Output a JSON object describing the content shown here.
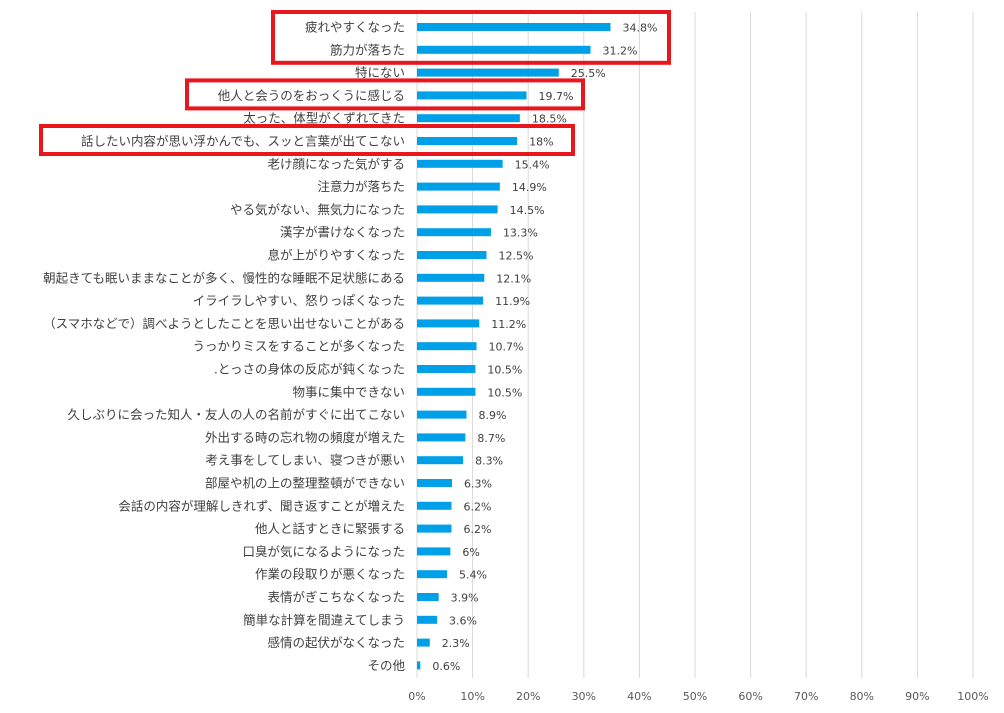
{
  "chart_data": {
    "type": "bar",
    "orientation": "horizontal",
    "categories": [
      "疲れやすくなった",
      "筋力が落ちた",
      "特にない",
      "他人と会うのをおっくうに感じる",
      "太った、体型がくずれてきた",
      "話したい内容が思い浮かんでも、スッと言葉が出てこない",
      "老け顔になった気がする",
      "注意力が落ちた",
      "やる気がない、無気力になった",
      "漢字が書けなくなった",
      "息が上がりやすくなった",
      "朝起きても眠いままなことが多く、慢性的な睡眠不足状態にある",
      "イライラしやすい、怒りっぽくなった",
      "（スマホなどで）調べようとしたことを思い出せないことがある",
      "うっかりミスをすることが多くなった",
      ".とっさの身体の反応が鈍くなった",
      "物事に集中できない",
      "久しぶりに会った知人・友人の人の名前がすぐに出てこない",
      "外出する時の忘れ物の頻度が増えた",
      "考え事をしてしまい、寝つきが悪い",
      "部屋や机の上の整理整頓ができない",
      "会話の内容が理解しきれず、聞き返すことが増えた",
      "他人と話すときに緊張する",
      "口臭が気になるようになった",
      "作業の段取りが悪くなった",
      "表情がぎこちなくなった",
      "簡単な計算を間違えてしまう",
      "感情の起伏がなくなった",
      "その他"
    ],
    "values": [
      34.8,
      31.2,
      25.5,
      19.7,
      18.5,
      18,
      15.4,
      14.9,
      14.5,
      13.3,
      12.5,
      12.1,
      11.9,
      11.2,
      10.7,
      10.5,
      10.5,
      8.9,
      8.7,
      8.3,
      6.3,
      6.2,
      6.2,
      6,
      5.4,
      3.9,
      3.6,
      2.3,
      0.6
    ],
    "data_labels": [
      "34.8%",
      "31.2%",
      "25.5%",
      "19.7%",
      "18.5%",
      "18%",
      "15.4%",
      "14.9%",
      "14.5%",
      "13.3%",
      "12.5%",
      "12.1%",
      "11.9%",
      "11.2%",
      "10.7%",
      "10.5%",
      "10.5%",
      "8.9%",
      "8.7%",
      "8.3%",
      "6.3%",
      "6.2%",
      "6.2%",
      "6%",
      "5.4%",
      "3.9%",
      "3.6%",
      "2.3%",
      "0.6%"
    ],
    "xlim": [
      0,
      100
    ],
    "x_ticks": [
      "0%",
      "10%",
      "20%",
      "30%",
      "40%",
      "50%",
      "60%",
      "70%",
      "80%",
      "90%",
      "100%"
    ],
    "grid": "vertical",
    "bar_color": "#00A0E9",
    "highlight_color": "#E8161D",
    "highlights": [
      [
        0,
        1
      ],
      [
        3,
        3
      ],
      [
        5,
        5
      ]
    ]
  }
}
